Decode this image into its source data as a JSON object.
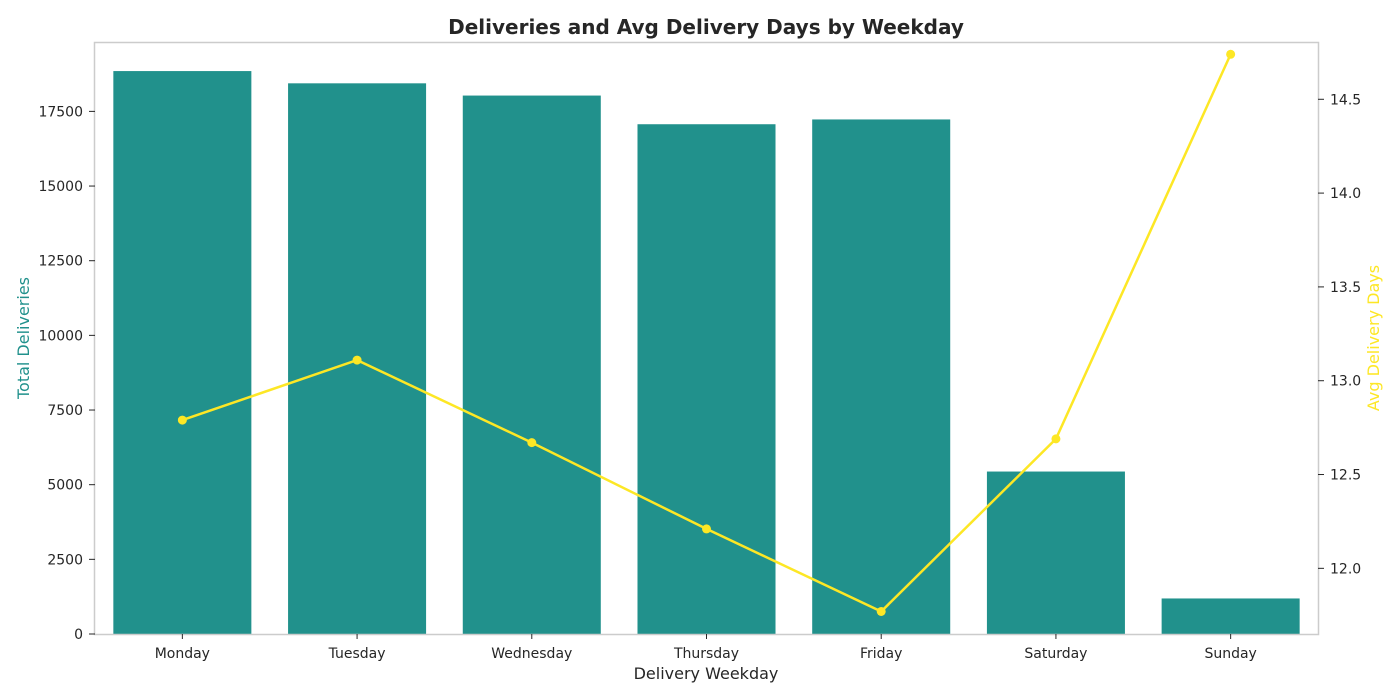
{
  "colors": {
    "bar": "#21918c",
    "line": "#fde725",
    "left_axis_label": "#21918c",
    "right_axis_label": "#fde725",
    "frame": "#cccccc",
    "text": "#262626"
  },
  "chart_data": {
    "type": "bar",
    "title": "Deliveries and Avg Delivery Days by Weekday",
    "xlabel": "Delivery Weekday",
    "ylabel": "Total Deliveries",
    "y2label": "Avg Delivery Days",
    "categories": [
      "Monday",
      "Tuesday",
      "Wednesday",
      "Thursday",
      "Friday",
      "Saturday",
      "Sunday"
    ],
    "series": [
      {
        "type": "bar",
        "axis": "left",
        "values": [
          18850,
          18440,
          18030,
          17070,
          17230,
          5440,
          1190
        ]
      },
      {
        "type": "line",
        "axis": "right",
        "marker": "circle",
        "values": [
          12.79,
          13.11,
          12.67,
          12.21,
          11.77,
          12.69,
          14.74
        ]
      }
    ],
    "ylim": [
      0,
      19790
    ],
    "y2lim": [
      11.65,
      14.8
    ],
    "yticks": [
      "0",
      "2500",
      "5000",
      "7500",
      "10000",
      "12500",
      "15000",
      "17500"
    ],
    "y2ticks": [
      "12.0",
      "12.5",
      "13.0",
      "13.5",
      "14.0",
      "14.5"
    ],
    "grid": false,
    "legend": "none"
  }
}
